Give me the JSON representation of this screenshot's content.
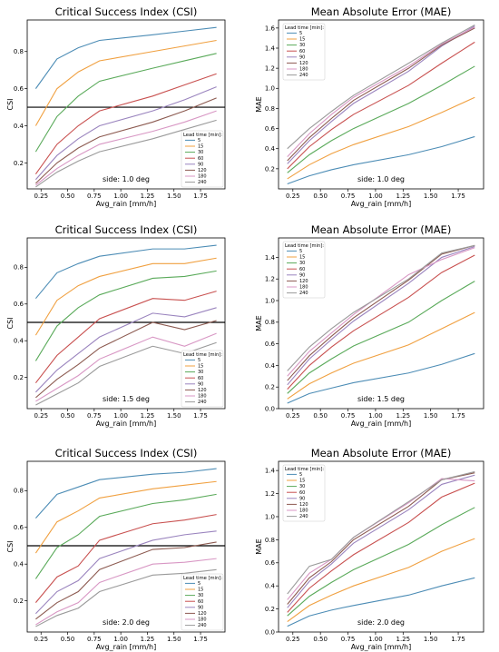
{
  "legend_title": "Lead time [min]:",
  "colors": [
    "#4C8CB5",
    "#F0A040",
    "#5AAA5A",
    "#C8504F",
    "#9A84BE",
    "#8C5A50",
    "#D897C4",
    "#9A9A9A"
  ],
  "chart_data": [
    {
      "type": "line",
      "title": "Critical Success Index (CSI)",
      "xlabel": "Avg_rain [mm/h]",
      "ylabel": "CSI",
      "annotation": "side: 1.0 deg",
      "xlim": [
        0.12,
        1.98
      ],
      "ylim": [
        0.06,
        0.97
      ],
      "xticks": [
        "0.25",
        "0.50",
        "0.75",
        "1.00",
        "1.25",
        "1.50",
        "1.75"
      ],
      "yticks": [
        "0.2",
        "0.4",
        "0.6",
        "0.8"
      ],
      "hline": 0.5,
      "legend": "bottom-right",
      "x": [
        0.2,
        0.4,
        0.6,
        0.8,
        1.3,
        1.6,
        1.9
      ],
      "series": [
        {
          "name": "5",
          "values": [
            0.6,
            0.76,
            0.82,
            0.86,
            0.89,
            0.91,
            0.93
          ]
        },
        {
          "name": "15",
          "values": [
            0.4,
            0.6,
            0.69,
            0.75,
            0.8,
            0.83,
            0.86
          ]
        },
        {
          "name": "30",
          "values": [
            0.26,
            0.45,
            0.56,
            0.64,
            0.71,
            0.75,
            0.79
          ]
        },
        {
          "name": "60",
          "values": [
            0.14,
            0.3,
            0.4,
            0.48,
            0.56,
            0.62,
            0.68
          ]
        },
        {
          "name": "90",
          "values": [
            0.11,
            0.24,
            0.33,
            0.4,
            0.48,
            0.54,
            0.61
          ]
        },
        {
          "name": "120",
          "values": [
            0.09,
            0.2,
            0.28,
            0.34,
            0.42,
            0.48,
            0.55
          ]
        },
        {
          "name": "180",
          "values": [
            0.08,
            0.17,
            0.24,
            0.3,
            0.37,
            0.42,
            0.48
          ]
        },
        {
          "name": "240",
          "values": [
            0.07,
            0.15,
            0.21,
            0.26,
            0.33,
            0.38,
            0.43
          ]
        }
      ]
    },
    {
      "type": "line",
      "title": "Mean Absolute Error (MAE)",
      "xlabel": "Avg_rain [mm/h]",
      "ylabel": "MAE",
      "annotation": "side: 1.0 deg",
      "xlim": [
        0.12,
        1.98
      ],
      "ylim": [
        0.0,
        1.68
      ],
      "xticks": [
        "0.25",
        "0.50",
        "0.75",
        "1.00",
        "1.25",
        "1.50",
        "1.75"
      ],
      "yticks": [
        "0.2",
        "0.4",
        "0.6",
        "0.8",
        "1.0",
        "1.2",
        "1.4",
        "1.6"
      ],
      "legend": "top-left",
      "x": [
        0.2,
        0.4,
        0.6,
        0.8,
        1.3,
        1.6,
        1.9
      ],
      "series": [
        {
          "name": "5",
          "values": [
            0.05,
            0.13,
            0.19,
            0.24,
            0.34,
            0.42,
            0.52
          ]
        },
        {
          "name": "15",
          "values": [
            0.1,
            0.24,
            0.35,
            0.44,
            0.62,
            0.76,
            0.91
          ]
        },
        {
          "name": "30",
          "values": [
            0.16,
            0.34,
            0.48,
            0.6,
            0.85,
            1.03,
            1.22
          ]
        },
        {
          "name": "60",
          "values": [
            0.2,
            0.42,
            0.59,
            0.74,
            1.03,
            1.25,
            1.46
          ]
        },
        {
          "name": "90",
          "values": [
            0.25,
            0.48,
            0.67,
            0.85,
            1.17,
            1.42,
            1.62
          ]
        },
        {
          "name": "120",
          "values": [
            0.28,
            0.51,
            0.7,
            0.88,
            1.2,
            1.43,
            1.6
          ]
        },
        {
          "name": "180",
          "values": [
            0.32,
            0.55,
            0.74,
            0.91,
            1.22,
            1.44,
            1.61
          ]
        },
        {
          "name": "240",
          "values": [
            0.4,
            0.6,
            0.77,
            0.93,
            1.25,
            1.45,
            1.63
          ]
        }
      ]
    },
    {
      "type": "line",
      "title": "Critical Success Index (CSI)",
      "xlabel": "Avg_rain [mm/h]",
      "ylabel": "CSI",
      "annotation": "side: 1.5 deg",
      "xlim": [
        0.12,
        1.98
      ],
      "ylim": [
        0.03,
        0.96
      ],
      "xticks": [
        "0.25",
        "0.50",
        "0.75",
        "1.00",
        "1.25",
        "1.50",
        "1.75"
      ],
      "yticks": [
        "0.2",
        "0.4",
        "0.6",
        "0.8"
      ],
      "hline": 0.5,
      "legend": "bottom-right",
      "x": [
        0.2,
        0.4,
        0.6,
        0.8,
        1.3,
        1.6,
        1.9
      ],
      "series": [
        {
          "name": "5",
          "values": [
            0.63,
            0.77,
            0.82,
            0.86,
            0.9,
            0.9,
            0.92
          ]
        },
        {
          "name": "15",
          "values": [
            0.43,
            0.62,
            0.7,
            0.75,
            0.82,
            0.82,
            0.85
          ]
        },
        {
          "name": "30",
          "values": [
            0.29,
            0.48,
            0.58,
            0.65,
            0.74,
            0.75,
            0.78
          ]
        },
        {
          "name": "60",
          "values": [
            0.17,
            0.32,
            0.42,
            0.52,
            0.63,
            0.62,
            0.67
          ]
        },
        {
          "name": "90",
          "values": [
            0.12,
            0.24,
            0.33,
            0.42,
            0.55,
            0.53,
            0.58
          ]
        },
        {
          "name": "120",
          "values": [
            0.09,
            0.19,
            0.27,
            0.36,
            0.5,
            0.46,
            0.51
          ]
        },
        {
          "name": "180",
          "values": [
            0.07,
            0.14,
            0.21,
            0.3,
            0.42,
            0.37,
            0.44
          ]
        },
        {
          "name": "240",
          "values": [
            0.05,
            0.11,
            0.17,
            0.26,
            0.37,
            0.33,
            0.39
          ]
        }
      ]
    },
    {
      "type": "line",
      "title": "Mean Absolute Error (MAE)",
      "xlabel": "Avg_rain [mm/h]",
      "ylabel": "MAE",
      "annotation": "side: 1.5 deg",
      "xlim": [
        0.12,
        1.98
      ],
      "ylim": [
        0.0,
        1.58
      ],
      "xticks": [
        "0.25",
        "0.50",
        "0.75",
        "1.00",
        "1.25",
        "1.50",
        "1.75"
      ],
      "yticks": [
        "0.0",
        "0.2",
        "0.4",
        "0.6",
        "0.8",
        "1.0",
        "1.2",
        "1.4"
      ],
      "legend": "top-left",
      "x": [
        0.2,
        0.4,
        0.6,
        0.8,
        1.3,
        1.6,
        1.9
      ],
      "series": [
        {
          "name": "5",
          "values": [
            0.05,
            0.14,
            0.19,
            0.24,
            0.33,
            0.41,
            0.51
          ]
        },
        {
          "name": "15",
          "values": [
            0.09,
            0.23,
            0.33,
            0.42,
            0.59,
            0.74,
            0.89
          ]
        },
        {
          "name": "30",
          "values": [
            0.14,
            0.33,
            0.46,
            0.58,
            0.8,
            1.0,
            1.18
          ]
        },
        {
          "name": "60",
          "values": [
            0.18,
            0.4,
            0.57,
            0.72,
            1.03,
            1.26,
            1.42
          ]
        },
        {
          "name": "90",
          "values": [
            0.22,
            0.46,
            0.64,
            0.81,
            1.16,
            1.4,
            1.5
          ]
        },
        {
          "name": "120",
          "values": [
            0.26,
            0.49,
            0.67,
            0.84,
            1.19,
            1.43,
            1.51
          ]
        },
        {
          "name": "180",
          "values": [
            0.3,
            0.53,
            0.7,
            0.87,
            1.24,
            1.38,
            1.49
          ]
        },
        {
          "name": "240",
          "values": [
            0.35,
            0.57,
            0.74,
            0.89,
            1.2,
            1.44,
            1.51
          ]
        }
      ]
    },
    {
      "type": "line",
      "title": "Critical Success Index (CSI)",
      "xlabel": "Avg_rain [mm/h]",
      "ylabel": "CSI",
      "annotation": "side: 2.0 deg",
      "xlim": [
        0.12,
        1.98
      ],
      "ylim": [
        0.03,
        0.96
      ],
      "xticks": [
        "0.25",
        "0.50",
        "0.75",
        "1.00",
        "1.25",
        "1.50",
        "1.75"
      ],
      "yticks": [
        "0.2",
        "0.4",
        "0.6",
        "0.8"
      ],
      "hline": 0.5,
      "legend": "bottom-right",
      "x": [
        0.2,
        0.4,
        0.6,
        0.8,
        1.3,
        1.6,
        1.9
      ],
      "series": [
        {
          "name": "5",
          "values": [
            0.65,
            0.78,
            0.82,
            0.86,
            0.89,
            0.9,
            0.92
          ]
        },
        {
          "name": "15",
          "values": [
            0.46,
            0.63,
            0.69,
            0.76,
            0.81,
            0.83,
            0.85
          ]
        },
        {
          "name": "30",
          "values": [
            0.32,
            0.49,
            0.56,
            0.66,
            0.73,
            0.75,
            0.78
          ]
        },
        {
          "name": "60",
          "values": [
            0.19,
            0.33,
            0.39,
            0.53,
            0.62,
            0.64,
            0.67
          ]
        },
        {
          "name": "90",
          "values": [
            0.13,
            0.25,
            0.31,
            0.43,
            0.53,
            0.56,
            0.58
          ]
        },
        {
          "name": "120",
          "values": [
            0.1,
            0.19,
            0.25,
            0.37,
            0.48,
            0.49,
            0.52
          ]
        },
        {
          "name": "180",
          "values": [
            0.07,
            0.14,
            0.19,
            0.3,
            0.4,
            0.41,
            0.43
          ]
        },
        {
          "name": "240",
          "values": [
            0.06,
            0.12,
            0.16,
            0.25,
            0.34,
            0.35,
            0.37
          ]
        }
      ]
    },
    {
      "type": "line",
      "title": "Mean Absolute Error (MAE)",
      "xlabel": "Avg_rain [mm/h]",
      "ylabel": "MAE",
      "annotation": "side: 2.0 deg",
      "xlim": [
        0.12,
        1.98
      ],
      "ylim": [
        0.0,
        1.48
      ],
      "xticks": [
        "0.25",
        "0.50",
        "0.75",
        "1.00",
        "1.25",
        "1.50",
        "1.75"
      ],
      "yticks": [
        "0.0",
        "0.2",
        "0.4",
        "0.6",
        "0.8",
        "1.0",
        "1.2",
        "1.4"
      ],
      "legend": "top-left",
      "x": [
        0.2,
        0.4,
        0.6,
        0.8,
        1.3,
        1.6,
        1.9
      ],
      "series": [
        {
          "name": "5",
          "values": [
            0.05,
            0.14,
            0.19,
            0.23,
            0.32,
            0.4,
            0.47
          ]
        },
        {
          "name": "15",
          "values": [
            0.09,
            0.23,
            0.32,
            0.4,
            0.56,
            0.7,
            0.81
          ]
        },
        {
          "name": "30",
          "values": [
            0.14,
            0.31,
            0.43,
            0.54,
            0.76,
            0.93,
            1.08
          ]
        },
        {
          "name": "60",
          "values": [
            0.17,
            0.38,
            0.53,
            0.67,
            0.95,
            1.17,
            1.29
          ]
        },
        {
          "name": "90",
          "values": [
            0.21,
            0.44,
            0.59,
            0.77,
            1.06,
            1.28,
            1.36
          ]
        },
        {
          "name": "120",
          "values": [
            0.24,
            0.47,
            0.61,
            0.8,
            1.09,
            1.32,
            1.38
          ]
        },
        {
          "name": "180",
          "values": [
            0.28,
            0.51,
            0.63,
            0.82,
            1.12,
            1.33,
            1.31
          ]
        },
        {
          "name": "240",
          "values": [
            0.33,
            0.57,
            0.63,
            0.82,
            1.13,
            1.32,
            1.39
          ]
        }
      ]
    }
  ]
}
